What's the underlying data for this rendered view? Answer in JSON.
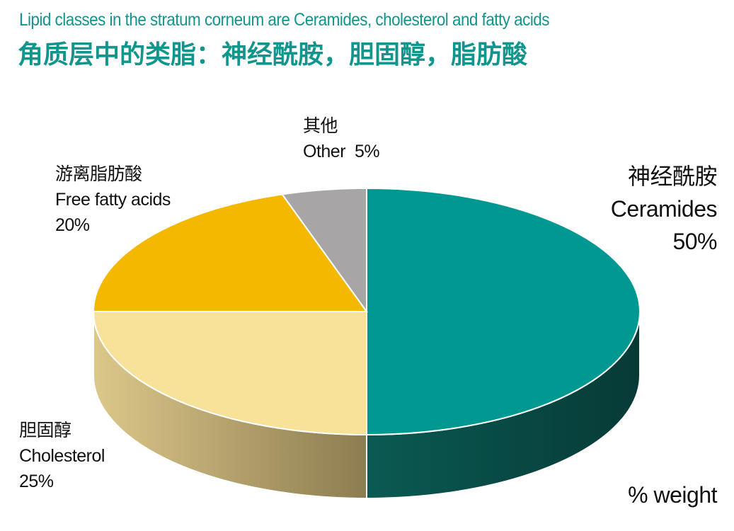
{
  "header": {
    "subtitle": "Lipid classes in the stratum corneum are Ceramides, cholesterol and fatty acids",
    "title": "角质层中的类脂：神经酰胺，胆固醇，脂肪酸"
  },
  "chart_data": {
    "type": "pie",
    "title": "角质层中的类脂：神经酰胺，胆固醇，脂肪酸",
    "unit_label": "% weight",
    "slices": [
      {
        "name_zh": "神经酰胺",
        "name": "Ceramides",
        "value": 50,
        "pct": "50%",
        "color": "#009890",
        "side": "#0c4a44"
      },
      {
        "name_zh": "胆固醇",
        "name": "Cholesterol",
        "value": 25,
        "pct": "25%",
        "color": "#f8e29a",
        "side": "#c9b373"
      },
      {
        "name_zh": "游离脂肪酸",
        "name": "Free fatty acids",
        "value": 20,
        "pct": "20%",
        "color": "#f5b800",
        "side": "#b88a00"
      },
      {
        "name_zh": "其他",
        "name": "Other",
        "value": 5,
        "pct": "5%",
        "color": "#a7a5a6",
        "side": "#6e6d6d"
      }
    ]
  }
}
